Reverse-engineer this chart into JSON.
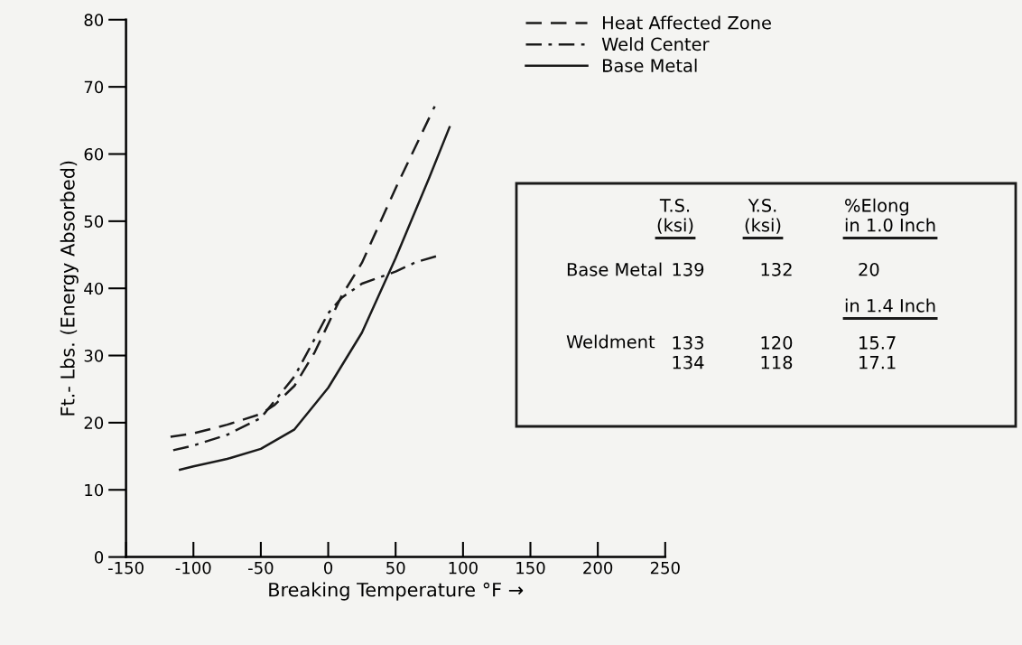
{
  "chart_data": {
    "type": "line",
    "xlabel": "Breaking Temperature °F →",
    "ylabel": "Ft.- Lbs. (Energy Absorbed)",
    "xlim": [
      -150,
      250
    ],
    "xticks": [
      -150,
      -100,
      -50,
      0,
      50,
      100,
      150,
      200,
      250
    ],
    "ylim": [
      0,
      80
    ],
    "yticks": [
      0,
      10,
      20,
      30,
      40,
      50,
      60,
      70,
      80
    ],
    "grid": false,
    "legend": "top right",
    "marker": "none",
    "series": [
      {
        "name": "Heat Affected Zone",
        "color": "#1a1a1a",
        "line_style": "dashed",
        "x": [
          -117,
          -100,
          -75,
          -50,
          -40,
          -25,
          -10,
          0,
          10,
          25,
          50,
          79
        ],
        "values": [
          17.9,
          18.4,
          19.7,
          21.3,
          22.6,
          25.5,
          30.5,
          34.7,
          38.9,
          43.8,
          54.9,
          67.1
        ]
      },
      {
        "name": "Weld Center",
        "color": "#1a1a1a",
        "line_style": "dashdot",
        "x": [
          -115,
          -100,
          -75,
          -50,
          -25,
          -10,
          0,
          10,
          25,
          50,
          65,
          80.5
        ],
        "values": [
          15.9,
          16.6,
          18.2,
          20.7,
          26.9,
          32.5,
          36.3,
          38.6,
          40.7,
          42.5,
          43.9,
          44.8
        ]
      },
      {
        "name": "Base Metal",
        "color": "#1a1a1a",
        "line_style": "solid",
        "x": [
          -110,
          -100,
          -75,
          -50,
          -25,
          0,
          25,
          50,
          75,
          90
        ],
        "values": [
          13,
          13.5,
          14.6,
          16.1,
          19,
          25.2,
          33.4,
          44.5,
          56.5,
          64
        ]
      }
    ],
    "annotations": [
      "T.S.\n(ksi)",
      "Y.S.\n(ksi)",
      "%Elong\nin 1.0 Inch",
      "Base Metal",
      "139",
      "132",
      "20",
      "in 1.4 Inch",
      "Weldment",
      "133\n134",
      "120\n118",
      "15.7\n17.1"
    ]
  }
}
